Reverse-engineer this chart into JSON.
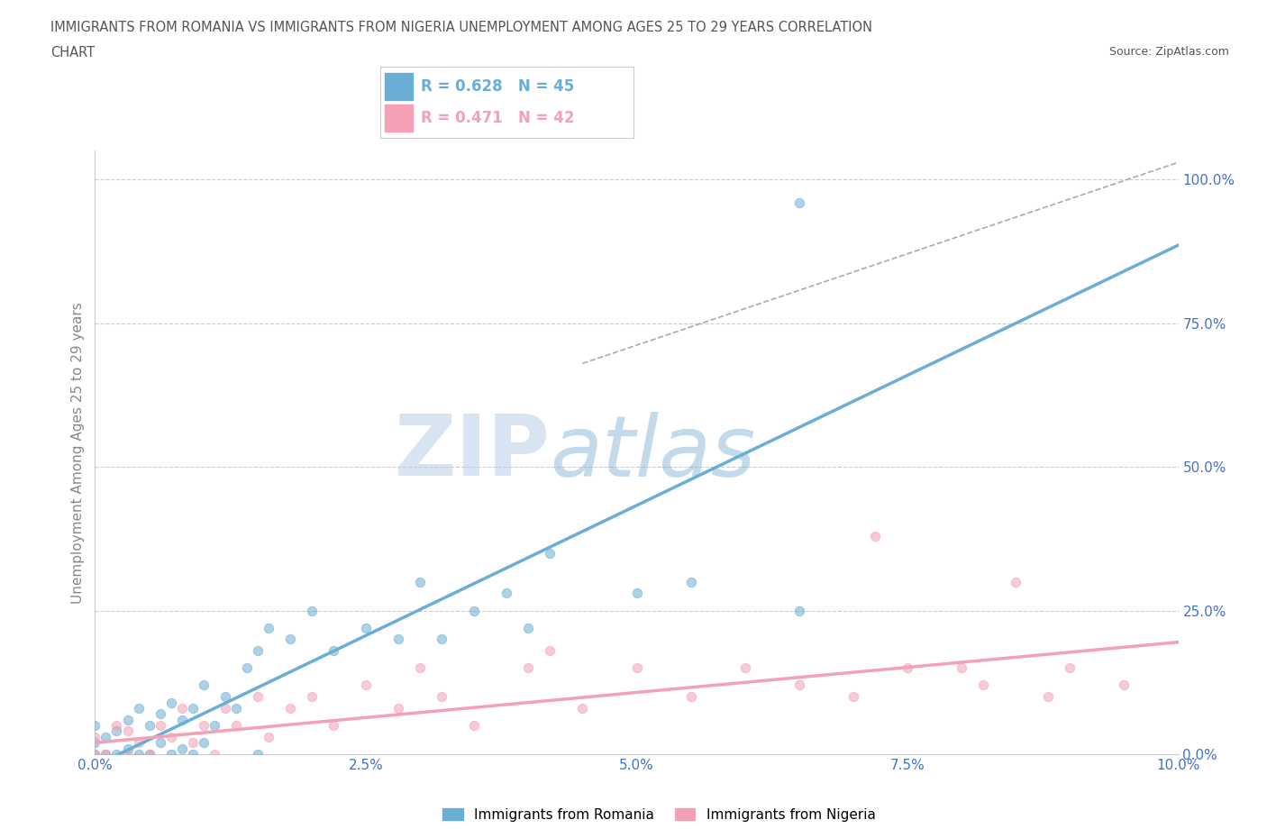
{
  "title_line1": "IMMIGRANTS FROM ROMANIA VS IMMIGRANTS FROM NIGERIA UNEMPLOYMENT AMONG AGES 25 TO 29 YEARS CORRELATION",
  "title_line2": "CHART",
  "source": "Source: ZipAtlas.com",
  "ylabel": "Unemployment Among Ages 25 to 29 years",
  "xlim": [
    0.0,
    0.1
  ],
  "ylim": [
    0.0,
    1.05
  ],
  "ytick_labels": [
    "0.0%",
    "25.0%",
    "50.0%",
    "75.0%",
    "100.0%"
  ],
  "ytick_vals": [
    0.0,
    0.25,
    0.5,
    0.75,
    1.0
  ],
  "xtick_labels": [
    "0.0%",
    "2.5%",
    "5.0%",
    "7.5%",
    "10.0%"
  ],
  "xtick_vals": [
    0.0,
    0.025,
    0.05,
    0.075,
    0.1
  ],
  "romania_color": "#6aaed6",
  "nigeria_color": "#f4a0b5",
  "romania_R": 0.628,
  "romania_N": 45,
  "nigeria_R": 0.471,
  "nigeria_N": 42,
  "romania_line_x0": 0.0,
  "romania_line_y0": -0.02,
  "romania_line_x1": 0.085,
  "romania_line_y1": 0.75,
  "nigeria_line_x0": 0.0,
  "nigeria_line_y0": 0.02,
  "nigeria_line_x1": 0.1,
  "nigeria_line_y1": 0.195,
  "dash_line_x0": 0.045,
  "dash_line_y0": 0.68,
  "dash_line_x1": 0.1,
  "dash_line_y1": 1.03,
  "romania_scatter_x": [
    0.0,
    0.0,
    0.0,
    0.001,
    0.001,
    0.002,
    0.002,
    0.003,
    0.003,
    0.004,
    0.004,
    0.005,
    0.005,
    0.006,
    0.006,
    0.007,
    0.007,
    0.008,
    0.008,
    0.009,
    0.009,
    0.01,
    0.01,
    0.011,
    0.012,
    0.013,
    0.014,
    0.015,
    0.015,
    0.016,
    0.018,
    0.02,
    0.022,
    0.025,
    0.028,
    0.03,
    0.032,
    0.035,
    0.038,
    0.04,
    0.042,
    0.05,
    0.055,
    0.065,
    0.065
  ],
  "romania_scatter_y": [
    0.0,
    0.02,
    0.05,
    0.0,
    0.03,
    0.0,
    0.04,
    0.01,
    0.06,
    0.0,
    0.08,
    0.0,
    0.05,
    0.02,
    0.07,
    0.0,
    0.09,
    0.01,
    0.06,
    0.0,
    0.08,
    0.02,
    0.12,
    0.05,
    0.1,
    0.08,
    0.15,
    0.0,
    0.18,
    0.22,
    0.2,
    0.25,
    0.18,
    0.22,
    0.2,
    0.3,
    0.2,
    0.25,
    0.28,
    0.22,
    0.35,
    0.28,
    0.3,
    0.25,
    0.96
  ],
  "nigeria_scatter_x": [
    0.0,
    0.0,
    0.001,
    0.002,
    0.003,
    0.003,
    0.004,
    0.005,
    0.006,
    0.007,
    0.008,
    0.009,
    0.01,
    0.011,
    0.012,
    0.013,
    0.015,
    0.016,
    0.018,
    0.02,
    0.022,
    0.025,
    0.028,
    0.03,
    0.032,
    0.035,
    0.04,
    0.042,
    0.045,
    0.05,
    0.055,
    0.06,
    0.065,
    0.07,
    0.072,
    0.075,
    0.08,
    0.082,
    0.085,
    0.088,
    0.09,
    0.095
  ],
  "nigeria_scatter_y": [
    0.0,
    0.03,
    0.0,
    0.05,
    0.0,
    0.04,
    0.02,
    0.0,
    0.05,
    0.03,
    0.08,
    0.02,
    0.05,
    0.0,
    0.08,
    0.05,
    0.1,
    0.03,
    0.08,
    0.1,
    0.05,
    0.12,
    0.08,
    0.15,
    0.1,
    0.05,
    0.15,
    0.18,
    0.08,
    0.15,
    0.1,
    0.15,
    0.12,
    0.1,
    0.38,
    0.15,
    0.15,
    0.12,
    0.3,
    0.1,
    0.15,
    0.12
  ],
  "watermark_zip": "ZIP",
  "watermark_atlas": "atlas",
  "background_color": "#ffffff",
  "grid_color": "#cccccc",
  "title_color": "#555555",
  "axis_label_color": "#888888",
  "tick_color": "#4472c4",
  "watermark_color": "#dce8f5"
}
